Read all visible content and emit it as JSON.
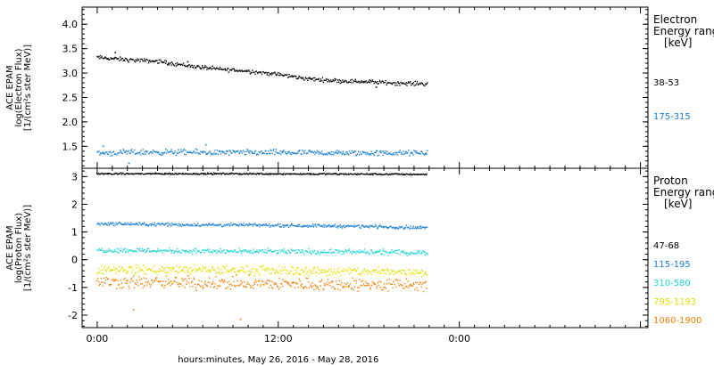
{
  "chart_data": {
    "type": "scatter",
    "x_axis": {
      "title": "hours:minutes, May 26, 2016 - May 28, 2016",
      "range_hours": [
        -1.0,
        36.5
      ],
      "ticks": [
        {
          "hours": 0,
          "label": "0:00"
        },
        {
          "hours": 12,
          "label": "12:00"
        },
        {
          "hours": 24,
          "label": "0:00"
        }
      ],
      "minor_tick_step_hours": 1
    },
    "panels": [
      {
        "name": "electron",
        "ylabel_lines": [
          "ACE EPAM",
          "log(Electron Flux)",
          "[1/(cm²s ster MeV)]"
        ],
        "ylim": [
          1.05,
          4.35
        ],
        "yticks": [
          {
            "value": 1.5,
            "label": "1.5"
          },
          {
            "value": 2.0,
            "label": "2.0"
          },
          {
            "value": 2.5,
            "label": "2.5"
          },
          {
            "value": 3.0,
            "label": "3.0"
          },
          {
            "value": 3.5,
            "label": "3.5"
          },
          {
            "value": 4.0,
            "label": "4.0"
          }
        ],
        "legend_title": [
          "Electron",
          "Energy range",
          "[keV]"
        ],
        "series": [
          {
            "name": "38-53",
            "color": "#000000",
            "x_hours": [
              0,
              2,
              4,
              6,
              8,
              10,
              12,
              14,
              16,
              18,
              20,
              21.9
            ],
            "values": [
              3.32,
              3.27,
              3.24,
              3.15,
              3.08,
              3.04,
              2.97,
              2.88,
              2.84,
              2.82,
              2.79,
              2.78
            ],
            "scatter": 0.035,
            "outliers": [
              [
                1.2,
                3.42
              ],
              [
                6.0,
                3.23
              ],
              [
                18.5,
                2.71
              ]
            ]
          },
          {
            "name": "175-315",
            "color": "#1a7fd6",
            "x_hours": [
              0,
              4,
              8,
              12,
              16,
              21.9
            ],
            "values": [
              1.36,
              1.38,
              1.37,
              1.37,
              1.36,
              1.36
            ],
            "scatter": 0.05,
            "outliers": [
              [
                2.1,
                1.15
              ],
              [
                7.2,
                1.53
              ],
              [
                0.4,
                1.5
              ]
            ]
          }
        ]
      },
      {
        "name": "proton",
        "ylabel_lines": [
          "ACE EPAM",
          "log(Proton Flux)",
          "[1/(cm²s ster MeV)]"
        ],
        "ylim": [
          -2.45,
          3.3
        ],
        "yticks": [
          {
            "value": -2,
            "label": "-2"
          },
          {
            "value": -1,
            "label": "-1"
          },
          {
            "value": 0,
            "label": "0"
          },
          {
            "value": 1,
            "label": "1"
          },
          {
            "value": 2,
            "label": "2"
          },
          {
            "value": 3,
            "label": "3"
          }
        ],
        "legend_title": [
          "Proton",
          "Energy range",
          "[keV]"
        ],
        "series": [
          {
            "name": "47-68",
            "color": "#000000",
            "x_hours": [
              0,
              10,
              21.9
            ],
            "values": [
              3.1,
              3.1,
              3.08
            ],
            "scatter": 0.025,
            "outliers": []
          },
          {
            "name": "115-195",
            "color": "#1a7fd6",
            "x_hours": [
              0,
              6,
              12,
              18,
              21.9
            ],
            "values": [
              1.3,
              1.26,
              1.24,
              1.2,
              1.15
            ],
            "scatter": 0.05,
            "outliers": []
          },
          {
            "name": "310-580",
            "color": "#22d3d3",
            "x_hours": [
              0,
              8,
              16,
              21.9
            ],
            "values": [
              0.35,
              0.3,
              0.28,
              0.25
            ],
            "scatter": 0.08,
            "outliers": []
          },
          {
            "name": "795-1193",
            "color": "#e0e000",
            "x_hours": [
              0,
              8,
              16,
              21.9
            ],
            "values": [
              -0.35,
              -0.38,
              -0.42,
              -0.45
            ],
            "scatter": 0.14,
            "outliers": []
          },
          {
            "name": "1060-1900",
            "color": "#f08000",
            "x_hours": [
              0,
              8,
              16,
              21.9
            ],
            "values": [
              -0.8,
              -0.85,
              -0.9,
              -0.92
            ],
            "scatter": 0.2,
            "outliers": [
              [
                2.4,
                -1.8
              ],
              [
                9.5,
                -2.15
              ]
            ]
          }
        ]
      }
    ]
  }
}
